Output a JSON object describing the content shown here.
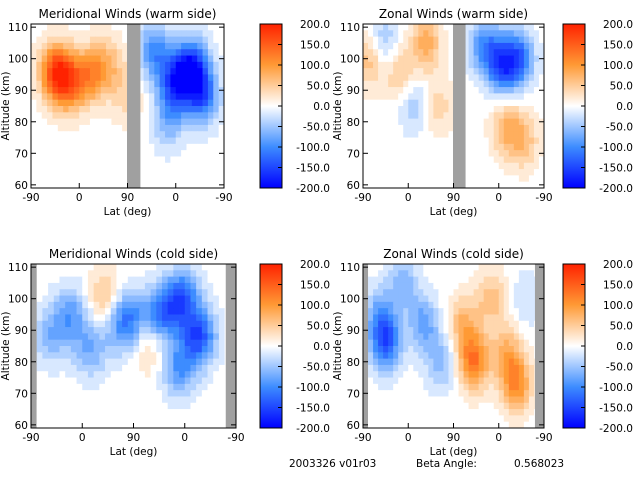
{
  "colors": {
    "warm_extreme": "#ff2200",
    "warm_mid": "#ff9a35",
    "neutral": "#ffffff",
    "cool_mid": "#3d8cff",
    "cool_extreme": "#0000ff",
    "data_gap": "#a0a0a0",
    "contour_line": "#000000"
  },
  "colorbar": {
    "labels": [
      "200.0",
      "150.0",
      "100.0",
      "50.0",
      "0.0",
      "-50.0",
      "-100.0",
      "-150.0",
      "-200.0"
    ],
    "range": [
      -200,
      200
    ]
  },
  "chart_data": [
    {
      "type": "heatmap",
      "title": "Meridional Winds (warm side)",
      "xlabel": "Lat (deg)",
      "ylabel": "Altitude (km)",
      "xticks": [
        "-90",
        "0",
        "90",
        "0",
        "-90"
      ],
      "yticks": [
        "60",
        "70",
        "80",
        "90",
        "100",
        "110"
      ],
      "ylim": [
        59,
        111
      ],
      "zlim": [
        -200,
        200
      ],
      "gap_band": true,
      "blobs": [
        {
          "x": -45,
          "y": 96,
          "value": 150
        },
        {
          "x": -20,
          "y": 92,
          "value": 120
        },
        {
          "x": 20,
          "y": 95,
          "value": 100
        },
        {
          "x": 55,
          "y": 98,
          "value": 60
        },
        {
          "x": 90,
          "y": 88,
          "value": 40
        },
        {
          "x": 140,
          "y": 102,
          "value": -100
        },
        {
          "x": 180,
          "y": 92,
          "value": -150
        },
        {
          "x": 210,
          "y": 97,
          "value": -170
        },
        {
          "x": 230,
          "y": 88,
          "value": -120
        },
        {
          "x": 165,
          "y": 80,
          "value": -60
        }
      ]
    },
    {
      "type": "heatmap",
      "title": "Zonal Winds (warm side)",
      "xlabel": "Lat (deg)",
      "ylabel": "Altitude (km)",
      "xticks": [
        "-90",
        "0",
        "90",
        "0",
        "-90"
      ],
      "yticks": [
        "60",
        "70",
        "80",
        "90",
        "100",
        "110"
      ],
      "ylim": [
        59,
        111
      ],
      "zlim": [
        -200,
        200
      ],
      "gap_band": true,
      "blobs": [
        {
          "x": -75,
          "y": 100,
          "value": 70
        },
        {
          "x": -50,
          "y": 105,
          "value": -60
        },
        {
          "x": -15,
          "y": 95,
          "value": 60
        },
        {
          "x": 10,
          "y": 86,
          "value": -50
        },
        {
          "x": 35,
          "y": 105,
          "value": 80
        },
        {
          "x": 60,
          "y": 85,
          "value": 40
        },
        {
          "x": 150,
          "y": 104,
          "value": -90
        },
        {
          "x": 185,
          "y": 98,
          "value": -140
        },
        {
          "x": 220,
          "y": 100,
          "value": -120
        },
        {
          "x": 195,
          "y": 78,
          "value": 70
        },
        {
          "x": 230,
          "y": 74,
          "value": 60
        }
      ]
    },
    {
      "type": "heatmap",
      "title": "Meridional Winds (cold side)",
      "xlabel": "Lat (deg)",
      "ylabel": "Altitude (km)",
      "xticks": [
        "-90",
        "0",
        "90",
        "0",
        "-90"
      ],
      "yticks": [
        "60",
        "70",
        "80",
        "90",
        "100",
        "110"
      ],
      "ylim": [
        59,
        111
      ],
      "zlim": [
        -200,
        200
      ],
      "gap_band": false,
      "blobs": [
        {
          "x": -55,
          "y": 88,
          "value": -60
        },
        {
          "x": -20,
          "y": 95,
          "value": -80
        },
        {
          "x": 15,
          "y": 84,
          "value": -70
        },
        {
          "x": 40,
          "y": 100,
          "value": 60
        },
        {
          "x": 70,
          "y": 92,
          "value": -90
        },
        {
          "x": 90,
          "y": 95,
          "value": -50
        },
        {
          "x": 140,
          "y": 95,
          "value": -110
        },
        {
          "x": 175,
          "y": 100,
          "value": -130
        },
        {
          "x": 205,
          "y": 88,
          "value": -140
        },
        {
          "x": 170,
          "y": 78,
          "value": -90
        },
        {
          "x": 120,
          "y": 85,
          "value": 40
        }
      ]
    },
    {
      "type": "heatmap",
      "title": "Zonal Winds (cold side)",
      "xlabel": "Lat (deg)",
      "ylabel": "Altitude (km)",
      "xticks": [
        "-90",
        "0",
        "90",
        "0",
        "-90"
      ],
      "yticks": [
        "60",
        "70",
        "80",
        "90",
        "100",
        "110"
      ],
      "ylim": [
        59,
        111
      ],
      "zlim": [
        -200,
        200
      ],
      "gap_band": false,
      "blobs": [
        {
          "x": -55,
          "y": 95,
          "value": -70
        },
        {
          "x": -45,
          "y": 86,
          "value": -130
        },
        {
          "x": -10,
          "y": 105,
          "value": -60
        },
        {
          "x": 30,
          "y": 92,
          "value": -80
        },
        {
          "x": 65,
          "y": 80,
          "value": -60
        },
        {
          "x": 110,
          "y": 92,
          "value": 70
        },
        {
          "x": 130,
          "y": 80,
          "value": 130
        },
        {
          "x": 165,
          "y": 100,
          "value": 60
        },
        {
          "x": 195,
          "y": 83,
          "value": 70
        },
        {
          "x": 215,
          "y": 73,
          "value": 110
        },
        {
          "x": 235,
          "y": 100,
          "value": -30
        }
      ]
    }
  ],
  "footer": {
    "run_id": "2003326 v01r03",
    "beta_label": "Beta Angle:",
    "beta_value": "0.568023"
  }
}
